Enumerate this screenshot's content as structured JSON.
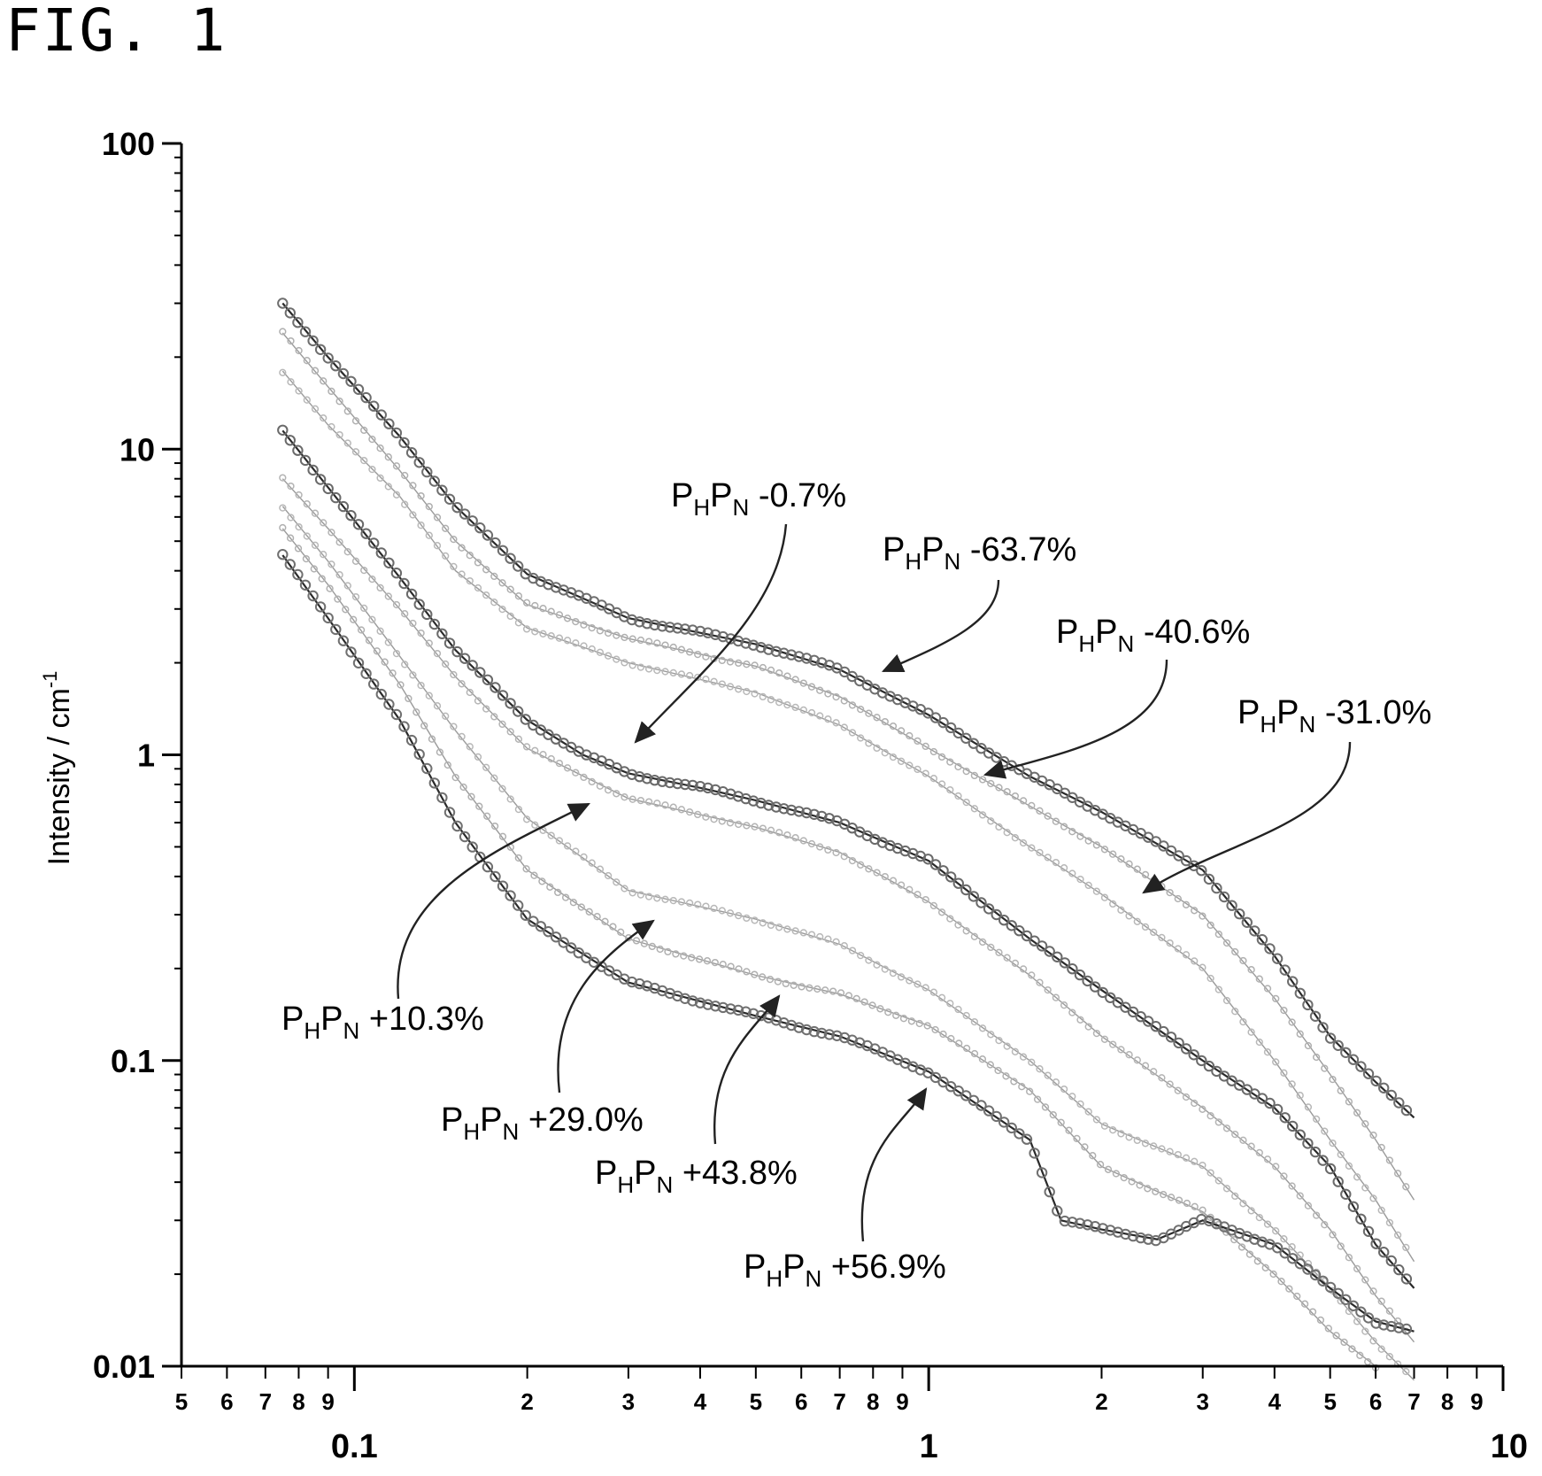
{
  "figure_label": "FIG. 1",
  "chart_data": {
    "type": "scatter",
    "title": "",
    "xlabel": "",
    "ylabel": "Intensity / cm",
    "ylabel_exponent": "-1",
    "x_scale": "log",
    "y_scale": "log",
    "xlim": [
      0.05,
      10
    ],
    "ylim": [
      0.01,
      100
    ],
    "grid": false,
    "x_major_ticks": [
      {
        "value": 0.1,
        "label": "0.1"
      },
      {
        "value": 1,
        "label": "1"
      },
      {
        "value": 10,
        "label": "10"
      }
    ],
    "x_minor_ticks": [
      {
        "value": 0.05,
        "label": "5"
      },
      {
        "value": 0.06,
        "label": "6"
      },
      {
        "value": 0.07,
        "label": "7"
      },
      {
        "value": 0.08,
        "label": "8"
      },
      {
        "value": 0.09,
        "label": "9"
      },
      {
        "value": 0.2,
        "label": "2"
      },
      {
        "value": 0.3,
        "label": "3"
      },
      {
        "value": 0.4,
        "label": "4"
      },
      {
        "value": 0.5,
        "label": "5"
      },
      {
        "value": 0.6,
        "label": "6"
      },
      {
        "value": 0.7,
        "label": "7"
      },
      {
        "value": 0.8,
        "label": "8"
      },
      {
        "value": 0.9,
        "label": "9"
      },
      {
        "value": 2,
        "label": "2"
      },
      {
        "value": 3,
        "label": "3"
      },
      {
        "value": 4,
        "label": "4"
      },
      {
        "value": 5,
        "label": "5"
      },
      {
        "value": 6,
        "label": "6"
      },
      {
        "value": 7,
        "label": "7"
      },
      {
        "value": 8,
        "label": "8"
      },
      {
        "value": 9,
        "label": "9"
      }
    ],
    "y_major_ticks": [
      {
        "value": 0.01,
        "label": "0.01"
      },
      {
        "value": 0.1,
        "label": "0.1"
      },
      {
        "value": 1,
        "label": "1"
      },
      {
        "value": 10,
        "label": "10"
      },
      {
        "value": 100,
        "label": "100"
      }
    ],
    "series": [
      {
        "label": {
          "sub1": "H",
          "sub2": "N",
          "value": "-63.7%"
        },
        "color": "#6e6e6e",
        "shade": "dark",
        "fit": true,
        "points": [
          [
            0.075,
            30
          ],
          [
            0.09,
            20
          ],
          [
            0.12,
            11
          ],
          [
            0.15,
            6.5
          ],
          [
            0.2,
            3.9
          ],
          [
            0.3,
            2.8
          ],
          [
            0.5,
            2.3
          ],
          [
            0.7,
            1.9
          ],
          [
            1,
            1.35
          ],
          [
            1.5,
            0.85
          ],
          [
            2,
            0.65
          ],
          [
            3,
            0.42
          ],
          [
            4,
            0.22
          ],
          [
            5,
            0.12
          ],
          [
            6,
            0.085
          ],
          [
            7,
            0.065
          ]
        ]
      },
      {
        "label": {
          "sub1": "H",
          "sub2": "N",
          "value": "-40.6%"
        },
        "color": "#b0b0b0",
        "shade": "light",
        "fit": true,
        "points": [
          [
            0.075,
            24
          ],
          [
            0.09,
            16
          ],
          [
            0.12,
            8.5
          ],
          [
            0.15,
            5
          ],
          [
            0.2,
            3.1
          ],
          [
            0.3,
            2.4
          ],
          [
            0.5,
            1.95
          ],
          [
            0.7,
            1.55
          ],
          [
            1,
            1.05
          ],
          [
            1.5,
            0.68
          ],
          [
            2,
            0.5
          ],
          [
            3,
            0.3
          ],
          [
            4,
            0.16
          ],
          [
            5,
            0.09
          ],
          [
            6,
            0.055
          ],
          [
            7,
            0.035
          ]
        ]
      },
      {
        "label": {
          "sub1": "H",
          "sub2": "N",
          "value": "-31.0%"
        },
        "color": "#b8b8b8",
        "shade": "light",
        "fit": true,
        "points": [
          [
            0.075,
            18
          ],
          [
            0.09,
            12
          ],
          [
            0.12,
            7
          ],
          [
            0.15,
            4
          ],
          [
            0.2,
            2.6
          ],
          [
            0.3,
            2
          ],
          [
            0.5,
            1.6
          ],
          [
            0.7,
            1.25
          ],
          [
            1,
            0.85
          ],
          [
            1.5,
            0.5
          ],
          [
            2,
            0.35
          ],
          [
            3,
            0.2
          ],
          [
            4,
            0.1
          ],
          [
            5,
            0.055
          ],
          [
            6,
            0.035
          ],
          [
            7,
            0.022
          ]
        ]
      },
      {
        "label": {
          "sub1": "H",
          "sub2": "N",
          "value": "-0.7%"
        },
        "color": "#6a6a6a",
        "shade": "dark",
        "fit": true,
        "points": [
          [
            0.075,
            11.5
          ],
          [
            0.09,
            7.5
          ],
          [
            0.12,
            3.8
          ],
          [
            0.15,
            2.2
          ],
          [
            0.2,
            1.3
          ],
          [
            0.25,
            1
          ],
          [
            0.3,
            0.87
          ],
          [
            0.4,
            0.78
          ],
          [
            0.5,
            0.71
          ],
          [
            0.7,
            0.6
          ],
          [
            1,
            0.45
          ],
          [
            1.5,
            0.25
          ],
          [
            2,
            0.17
          ],
          [
            3,
            0.1
          ],
          [
            4,
            0.07
          ],
          [
            5,
            0.045
          ],
          [
            6,
            0.025
          ],
          [
            7,
            0.018
          ]
        ]
      },
      {
        "label": {
          "sub1": "H",
          "sub2": "N",
          "value": "+10.3%"
        },
        "color": "#b4b4b4",
        "shade": "light",
        "fit": true,
        "points": [
          [
            0.075,
            8
          ],
          [
            0.09,
            5.5
          ],
          [
            0.12,
            3
          ],
          [
            0.15,
            1.8
          ],
          [
            0.2,
            1.05
          ],
          [
            0.3,
            0.72
          ],
          [
            0.5,
            0.58
          ],
          [
            0.7,
            0.48
          ],
          [
            1,
            0.33
          ],
          [
            1.5,
            0.19
          ],
          [
            2,
            0.12
          ],
          [
            3,
            0.07
          ],
          [
            4,
            0.045
          ],
          [
            5,
            0.028
          ],
          [
            6,
            0.017
          ],
          [
            7,
            0.012
          ]
        ]
      },
      {
        "label": {
          "sub1": "H",
          "sub2": "N",
          "value": "+29.0%"
        },
        "color": "#b8b8b8",
        "shade": "light",
        "fit": true,
        "points": [
          [
            0.075,
            6.5
          ],
          [
            0.09,
            4.3
          ],
          [
            0.12,
            2.1
          ],
          [
            0.15,
            1.2
          ],
          [
            0.2,
            0.62
          ],
          [
            0.3,
            0.36
          ],
          [
            0.5,
            0.29
          ],
          [
            0.7,
            0.24
          ],
          [
            1,
            0.17
          ],
          [
            1.5,
            0.1
          ],
          [
            2,
            0.062
          ],
          [
            3,
            0.045
          ],
          [
            4,
            0.028
          ],
          [
            5,
            0.018
          ],
          [
            6,
            0.012
          ],
          [
            7,
            0.009
          ]
        ]
      },
      {
        "label": {
          "sub1": "H",
          "sub2": "N",
          "value": "+43.8%"
        },
        "color": "#b0b0b0",
        "shade": "light",
        "fit": true,
        "points": [
          [
            0.075,
            5.5
          ],
          [
            0.09,
            3.6
          ],
          [
            0.12,
            1.7
          ],
          [
            0.15,
            0.85
          ],
          [
            0.2,
            0.42
          ],
          [
            0.3,
            0.25
          ],
          [
            0.5,
            0.19
          ],
          [
            0.7,
            0.165
          ],
          [
            1,
            0.13
          ],
          [
            1.5,
            0.08
          ],
          [
            2,
            0.045
          ],
          [
            3,
            0.032
          ],
          [
            4,
            0.02
          ],
          [
            5,
            0.013
          ],
          [
            6,
            0.01
          ]
        ]
      },
      {
        "label": {
          "sub1": "H",
          "sub2": "N",
          "value": "+56.9%"
        },
        "color": "#707070",
        "shade": "dark",
        "fit": true,
        "points": [
          [
            0.075,
            4.5
          ],
          [
            0.09,
            2.8
          ],
          [
            0.12,
            1.3
          ],
          [
            0.15,
            0.6
          ],
          [
            0.2,
            0.29
          ],
          [
            0.3,
            0.18
          ],
          [
            0.5,
            0.14
          ],
          [
            0.7,
            0.12
          ],
          [
            1,
            0.092
          ],
          [
            1.5,
            0.055
          ],
          [
            1.7,
            0.03
          ],
          [
            2,
            0.028
          ],
          [
            2.5,
            0.026
          ],
          [
            3,
            0.03
          ],
          [
            4,
            0.025
          ],
          [
            5,
            0.018
          ],
          [
            6,
            0.014
          ],
          [
            7,
            0.013
          ]
        ]
      }
    ],
    "annotations": [
      {
        "prefix": "P",
        "sub1": "H",
        "mid": "P",
        "sub2": "N",
        "value": "-0.7%"
      },
      {
        "prefix": "P",
        "sub1": "H",
        "mid": "P",
        "sub2": "N",
        "value": "-63.7%"
      },
      {
        "prefix": "P",
        "sub1": "H",
        "mid": "P",
        "sub2": "N",
        "value": "-40.6%"
      },
      {
        "prefix": "P",
        "sub1": "H",
        "mid": "P",
        "sub2": "N",
        "value": "-31.0%"
      },
      {
        "prefix": "P",
        "sub1": "H",
        "mid": "P",
        "sub2": "N",
        "value": "+10.3%"
      },
      {
        "prefix": "P",
        "sub1": "H",
        "mid": "P",
        "sub2": "N",
        "value": "+29.0%"
      },
      {
        "prefix": "P",
        "sub1": "H",
        "mid": "P",
        "sub2": "N",
        "value": "+43.8%"
      },
      {
        "prefix": "P",
        "sub1": "H",
        "mid": "P",
        "sub2": "N",
        "value": "+56.9%"
      }
    ]
  }
}
